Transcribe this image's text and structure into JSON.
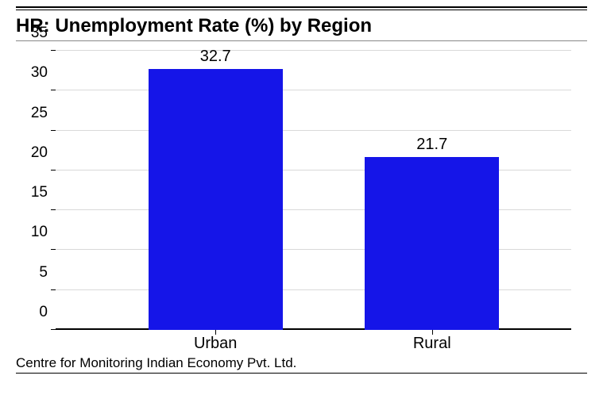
{
  "chart": {
    "type": "bar",
    "title": "HR: Unemployment Rate (%) by Region",
    "source": "Centre for Monitoring Indian Economy Pvt. Ltd.",
    "ylim": [
      0,
      35
    ],
    "ytick_step": 5,
    "yticks": [
      0,
      5,
      10,
      15,
      20,
      25,
      30,
      35
    ],
    "categories": [
      "Urban",
      "Rural"
    ],
    "values": [
      32.7,
      21.7
    ],
    "value_labels": [
      "32.7",
      "21.7"
    ],
    "bar_color": "#1515e8",
    "grid_color": "#d9d9d9",
    "axis_color": "#000000",
    "background_color": "#ffffff",
    "title_fontsize": 24,
    "label_fontsize": 20,
    "tick_fontsize": 19,
    "source_fontsize": 17,
    "bar_width_pct": 26,
    "bar_positions_pct": [
      18,
      60
    ]
  }
}
